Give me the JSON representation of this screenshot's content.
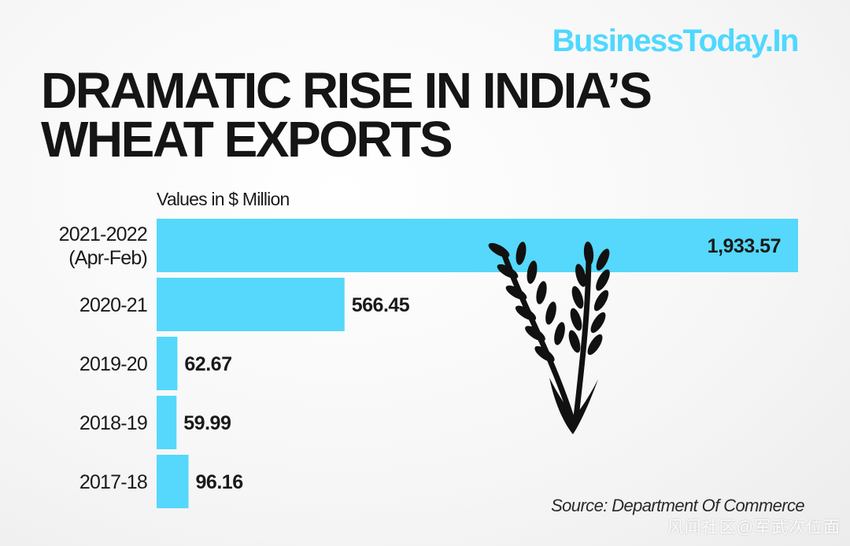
{
  "brand": "BusinessToday.In",
  "title_lines": [
    "DRAMATIC RISE IN INDIA’S",
    "WHEAT EXPORTS"
  ],
  "units_label": "Values in $ Million",
  "source": "Source: Department Of Commerce",
  "watermark": "风闻社区@军武次位面",
  "colors": {
    "bar": "#55d8fb",
    "text": "#1a1a1a"
  },
  "chart_data": {
    "type": "bar",
    "orientation": "horizontal",
    "title": "DRAMATIC RISE IN INDIA’S WHEAT EXPORTS",
    "xlabel": "Values in $ Million",
    "ylabel": "",
    "categories": [
      [
        "2021-2022",
        "(Apr-Feb)"
      ],
      [
        "2020-21"
      ],
      [
        "2019-20"
      ],
      [
        "2018-19"
      ],
      [
        "2017-18"
      ]
    ],
    "values": [
      1933.57,
      566.45,
      62.67,
      59.99,
      96.16
    ],
    "value_labels": [
      "1,933.57",
      "566.45",
      "62.67",
      "59.99",
      "96.16"
    ],
    "xlim": [
      0,
      1933.57
    ],
    "grid": false,
    "legend": "none"
  }
}
